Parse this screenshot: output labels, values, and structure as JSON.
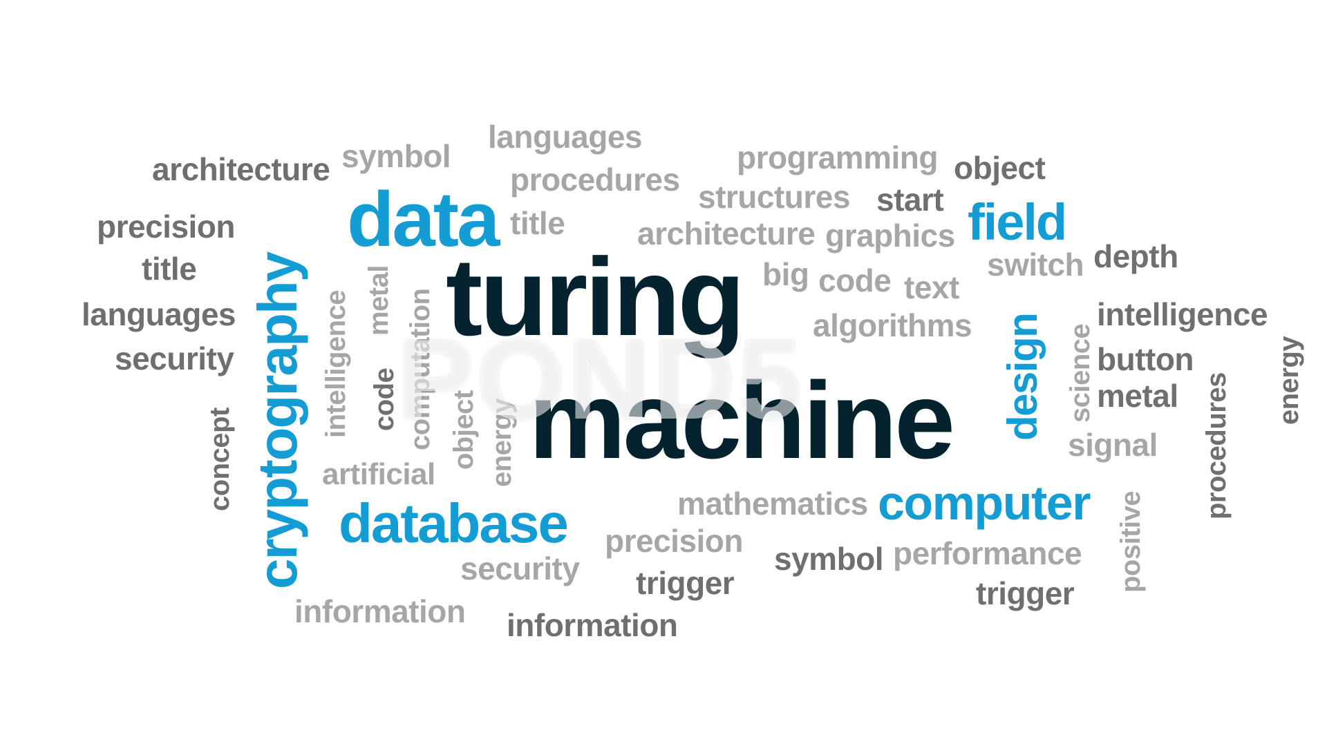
{
  "colors": {
    "dark": "#05222f",
    "blue": "#139dd4",
    "mid": "#6f6f6f",
    "light": "#a6a6a6",
    "background": "#ffffff"
  },
  "watermark": "POND5",
  "words": {
    "turing": "turing",
    "machine": "machine",
    "data": "data",
    "cryptography": "cryptography",
    "database": "database",
    "computer": "computer",
    "field": "field",
    "design": "design",
    "architecture_1": "architecture",
    "symbol_1": "symbol",
    "languages_1": "languages",
    "procedures_1": "procedures",
    "programming": "programming",
    "object_1": "object",
    "structures": "structures",
    "start": "start",
    "title_1": "title",
    "architecture_2": "architecture",
    "graphics": "graphics",
    "precision_1": "precision",
    "title_2": "title",
    "languages_2": "languages",
    "security_1": "security",
    "switch": "switch",
    "depth": "depth",
    "big": "big",
    "code_1": "code",
    "text": "text",
    "algorithms": "algorithms",
    "intelligence_1": "intelligence",
    "button": "button",
    "metal_1": "metal",
    "signal": "signal",
    "concept": "concept",
    "intelligence_2": "intelligence",
    "metal_2": "metal",
    "code_2": "code",
    "computation": "computation",
    "object_2": "object",
    "energy_1": "energy",
    "artificial": "artificial",
    "science": "science",
    "procedures_2": "procedures",
    "energy_2": "energy",
    "positive": "positive",
    "mathematics": "mathematics",
    "precision_2": "precision",
    "security_2": "security",
    "symbol_2": "symbol",
    "performance": "performance",
    "trigger_1": "trigger",
    "trigger_2": "trigger",
    "information_1": "information",
    "information_2": "information"
  }
}
